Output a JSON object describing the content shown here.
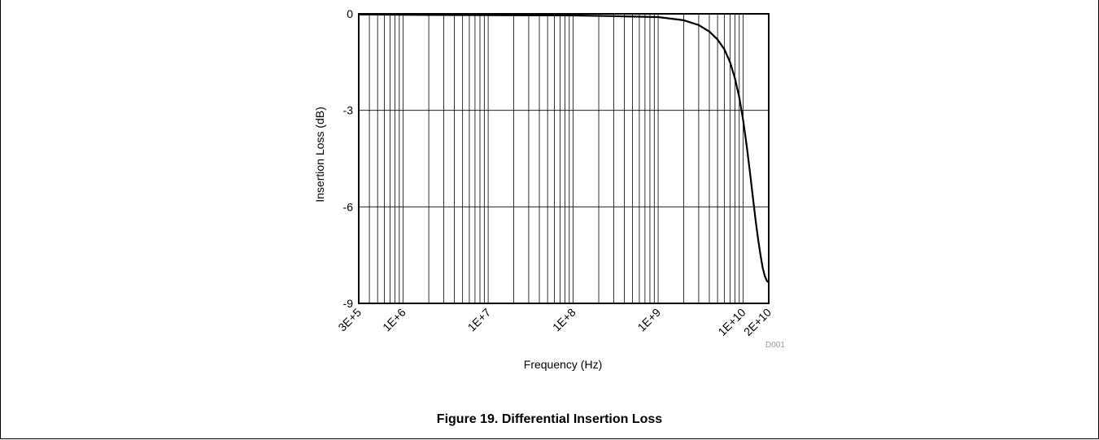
{
  "chart_data": {
    "type": "line",
    "title": "",
    "xlabel": "Frequency (Hz)",
    "ylabel": "Insertion Loss (dB)",
    "x_scale": "log",
    "xlim": [
      300000,
      20000000000
    ],
    "ylim": [
      -9,
      0
    ],
    "grid": true,
    "y_ticks": [
      0,
      -3,
      -6,
      -9
    ],
    "y_tick_labels": [
      "0",
      "-3",
      "-6",
      "-9"
    ],
    "x_ticks": [
      300000,
      1000000,
      10000000,
      100000000,
      1000000000,
      10000000000,
      20000000000
    ],
    "x_tick_labels": [
      "3E+5",
      "1E+6",
      "1E+7",
      "1E+8",
      "1E+9",
      "1E+10",
      "2E+10"
    ],
    "series": [
      {
        "x": [
          300000,
          1000000,
          10000000,
          100000000,
          300000000,
          1000000000,
          2000000000,
          3000000000,
          4000000000,
          5000000000,
          6000000000,
          7000000000,
          8000000000,
          9000000000,
          10000000000,
          11000000000,
          12000000000,
          13000000000,
          14000000000,
          15000000000,
          16000000000,
          17000000000,
          18000000000,
          19000000000,
          20000000000
        ],
        "y": [
          -0.02,
          -0.03,
          -0.04,
          -0.05,
          -0.07,
          -0.1,
          -0.2,
          -0.35,
          -0.55,
          -0.8,
          -1.1,
          -1.5,
          -2.0,
          -2.6,
          -3.3,
          -4.1,
          -4.9,
          -5.7,
          -6.4,
          -7.0,
          -7.5,
          -7.9,
          -8.15,
          -8.3,
          -8.35
        ]
      }
    ]
  },
  "figure": {
    "code": "D001",
    "caption": "Figure 19. Differential Insertion Loss"
  },
  "colors": {
    "line": "#000000",
    "grid": "#000000"
  }
}
